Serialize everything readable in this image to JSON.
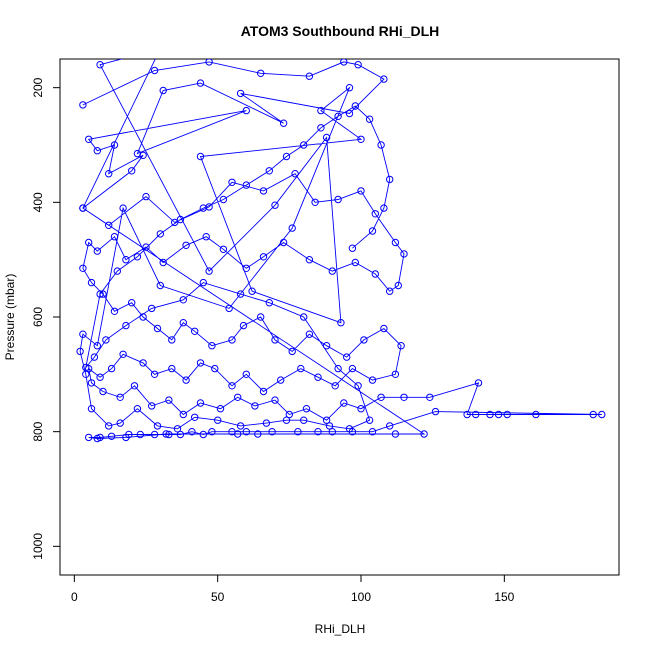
{
  "chart_data": {
    "type": "scatter",
    "title": "ATOM3 Southbound RHi_DLH",
    "xlabel": "RHi_DLH",
    "ylabel": "Pressure (mbar)",
    "xlim": [
      -5,
      190
    ],
    "ylim": [
      1050,
      150
    ],
    "y_axis_reversed": true,
    "x_ticks": [
      0,
      50,
      100,
      150
    ],
    "y_ticks": [
      200,
      400,
      600,
      800,
      1000
    ],
    "grid": false,
    "legend": "none",
    "marker": "open-circle",
    "connected": true,
    "color": "#0000ff",
    "series": [
      {
        "points": [
          [
            3,
            230
          ],
          [
            28,
            170
          ],
          [
            47,
            155
          ],
          [
            65,
            175
          ],
          [
            82,
            180
          ],
          [
            94,
            155
          ],
          [
            99,
            160
          ],
          [
            108,
            185
          ],
          [
            96,
            245
          ],
          [
            58,
            210
          ],
          [
            73,
            262
          ],
          [
            44,
            192
          ],
          [
            31,
            205
          ],
          [
            22,
            315
          ],
          [
            60,
            240
          ],
          [
            5,
            290
          ],
          [
            8,
            310
          ],
          [
            14,
            300
          ],
          [
            12,
            350
          ],
          [
            24,
            318
          ],
          [
            20,
            345
          ],
          [
            3,
            410
          ],
          [
            12,
            440
          ],
          [
            25,
            390
          ],
          [
            35,
            435
          ],
          [
            47,
            408
          ],
          [
            55,
            365
          ],
          [
            66,
            380
          ],
          [
            77,
            350
          ],
          [
            84,
            400
          ],
          [
            92,
            395
          ],
          [
            100,
            380
          ],
          [
            105,
            420
          ],
          [
            112,
            470
          ],
          [
            115,
            490
          ],
          [
            113,
            545
          ],
          [
            110,
            555
          ],
          [
            105,
            525
          ],
          [
            98,
            505
          ],
          [
            90,
            520
          ],
          [
            82,
            500
          ],
          [
            73,
            470
          ],
          [
            66,
            495
          ],
          [
            60,
            515
          ],
          [
            52,
            482
          ],
          [
            46,
            460
          ],
          [
            39,
            475
          ],
          [
            31,
            505
          ],
          [
            25,
            478
          ],
          [
            18,
            500
          ],
          [
            14,
            460
          ],
          [
            8,
            485
          ],
          [
            5,
            470
          ],
          [
            3,
            515
          ],
          [
            6,
            540
          ],
          [
            10,
            560
          ],
          [
            14,
            590
          ],
          [
            20,
            575
          ],
          [
            24,
            600
          ],
          [
            29,
            620
          ],
          [
            34,
            640
          ],
          [
            38,
            610
          ],
          [
            42,
            625
          ],
          [
            48,
            650
          ],
          [
            55,
            640
          ],
          [
            59,
            615
          ],
          [
            65,
            600
          ],
          [
            70,
            640
          ],
          [
            76,
            660
          ],
          [
            82,
            630
          ],
          [
            88,
            650
          ],
          [
            95,
            670
          ],
          [
            101,
            640
          ],
          [
            108,
            620
          ],
          [
            114,
            650
          ],
          [
            112,
            700
          ],
          [
            104,
            710
          ],
          [
            97,
            690
          ],
          [
            91,
            720
          ],
          [
            85,
            705
          ],
          [
            79,
            690
          ],
          [
            72,
            710
          ],
          [
            66,
            730
          ],
          [
            60,
            700
          ],
          [
            55,
            720
          ],
          [
            49,
            690
          ],
          [
            44,
            680
          ],
          [
            39,
            710
          ],
          [
            34,
            690
          ],
          [
            28,
            700
          ],
          [
            24,
            680
          ],
          [
            17,
            665
          ],
          [
            13,
            690
          ],
          [
            9,
            705
          ],
          [
            5,
            690
          ],
          [
            6,
            715
          ],
          [
            10,
            730
          ],
          [
            16,
            740
          ],
          [
            21,
            720
          ],
          [
            27,
            755
          ],
          [
            33,
            745
          ],
          [
            38,
            770
          ],
          [
            44,
            750
          ],
          [
            51,
            760
          ],
          [
            57,
            740
          ],
          [
            63,
            755
          ],
          [
            70,
            745
          ],
          [
            75,
            770
          ],
          [
            81,
            760
          ],
          [
            88,
            780
          ],
          [
            94,
            750
          ],
          [
            100,
            760
          ],
          [
            107,
            740
          ],
          [
            115,
            740
          ],
          [
            124,
            740
          ],
          [
            141,
            715
          ],
          [
            137,
            770
          ],
          [
            140,
            770
          ],
          [
            145,
            770
          ],
          [
            148,
            770
          ],
          [
            151,
            770
          ],
          [
            161,
            770
          ],
          [
            181,
            770
          ],
          [
            184,
            770
          ],
          [
            126,
            765
          ],
          [
            110,
            790
          ],
          [
            104,
            800
          ],
          [
            97,
            800
          ],
          [
            90,
            800
          ],
          [
            85,
            800
          ],
          [
            78,
            800
          ],
          [
            69,
            800
          ],
          [
            60,
            800
          ],
          [
            55,
            800
          ],
          [
            48,
            800
          ],
          [
            45,
            805
          ],
          [
            41,
            800
          ],
          [
            37,
            805
          ],
          [
            33,
            805
          ],
          [
            28,
            805
          ],
          [
            23,
            805
          ],
          [
            19,
            805
          ],
          [
            13,
            808
          ],
          [
            9,
            810
          ],
          [
            5,
            810
          ],
          [
            8,
            812
          ],
          [
            18,
            810
          ],
          [
            32,
            804
          ],
          [
            57,
            804
          ],
          [
            64,
            804
          ],
          [
            112,
            804
          ],
          [
            122,
            804
          ],
          [
            3,
            410
          ],
          [
            30,
            132
          ],
          [
            9,
            160
          ],
          [
            47,
            520
          ],
          [
            70,
            405
          ],
          [
            88,
            287
          ],
          [
            93,
            610
          ],
          [
            62,
            555
          ],
          [
            44,
            320
          ],
          [
            100,
            290
          ],
          [
            86,
            240
          ],
          [
            96,
            200
          ],
          [
            76,
            445
          ],
          [
            54,
            585
          ],
          [
            30,
            545
          ],
          [
            17,
            410
          ],
          [
            8,
            650
          ],
          [
            3,
            630
          ],
          [
            2,
            660
          ],
          [
            4,
            700
          ],
          [
            6,
            760
          ],
          [
            12,
            790
          ],
          [
            16,
            785
          ],
          [
            22,
            760
          ],
          [
            29,
            790
          ],
          [
            36,
            795
          ],
          [
            42,
            775
          ],
          [
            50,
            780
          ],
          [
            58,
            790
          ],
          [
            67,
            785
          ],
          [
            74,
            780
          ],
          [
            80,
            780
          ],
          [
            89,
            790
          ],
          [
            96,
            795
          ],
          [
            103,
            780
          ],
          [
            99,
            720
          ],
          [
            92,
            690
          ],
          [
            80,
            600
          ],
          [
            68,
            575
          ],
          [
            58,
            560
          ],
          [
            45,
            540
          ],
          [
            38,
            570
          ],
          [
            27,
            585
          ],
          [
            18,
            615
          ],
          [
            11,
            640
          ],
          [
            7,
            670
          ],
          [
            4,
            688
          ],
          [
            9,
            560
          ],
          [
            15,
            520
          ],
          [
            22,
            495
          ],
          [
            30,
            455
          ],
          [
            37,
            430
          ],
          [
            45,
            410
          ],
          [
            52,
            395
          ],
          [
            60,
            370
          ],
          [
            68,
            345
          ],
          [
            74,
            320
          ],
          [
            80,
            300
          ],
          [
            86,
            270
          ],
          [
            92,
            250
          ],
          [
            98,
            232
          ],
          [
            103,
            255
          ],
          [
            107,
            300
          ],
          [
            110,
            360
          ],
          [
            108,
            410
          ],
          [
            104,
            450
          ],
          [
            97,
            480
          ]
        ]
      }
    ]
  }
}
